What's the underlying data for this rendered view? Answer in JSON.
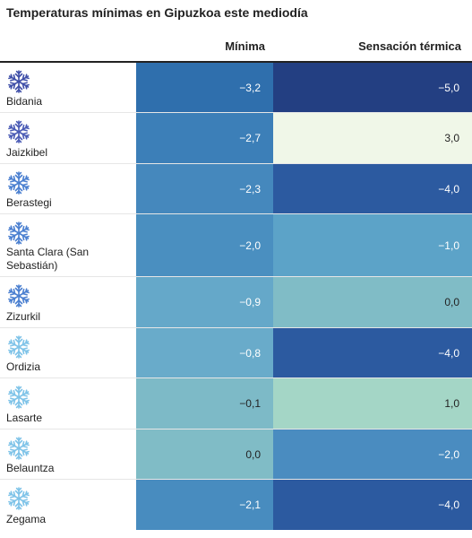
{
  "title": "Temperaturas mínimas en Gipuzkoa este mediodía",
  "headers": {
    "place": "",
    "min": "Mínima",
    "sens": "Sensación térmica"
  },
  "rows": [
    {
      "place": "Bidania",
      "min": "−3,2",
      "sens": "−5,0",
      "icon_color": "#3f4fa8",
      "min_bg": "#2f6fad",
      "min_fg": "#ffffff",
      "sens_bg": "#233f82",
      "sens_fg": "#ffffff"
    },
    {
      "place": "Jaizkibel",
      "min": "−2,7",
      "sens": "3,0",
      "icon_color": "#4a5bb5",
      "min_bg": "#3c7fb8",
      "min_fg": "#ffffff",
      "sens_bg": "#f0f7e8",
      "sens_fg": "#222222"
    },
    {
      "place": "Berastegi",
      "min": "−2,3",
      "sens": "−4,0",
      "icon_color": "#4a7fd0",
      "min_bg": "#4588bd",
      "min_fg": "#ffffff",
      "sens_bg": "#2c5aa0",
      "sens_fg": "#ffffff"
    },
    {
      "place": "Santa Clara (San Sebastián)",
      "min": "−2,0",
      "sens": "−1,0",
      "icon_color": "#4a7fd0",
      "min_bg": "#4a8fc0",
      "min_fg": "#ffffff",
      "sens_bg": "#5ca3c8",
      "sens_fg": "#ffffff"
    },
    {
      "place": "Zizurkil",
      "min": "−0,9",
      "sens": "0,0",
      "icon_color": "#4a7fd0",
      "min_bg": "#65a8c9",
      "min_fg": "#ffffff",
      "sens_bg": "#80bcc6",
      "sens_fg": "#222222"
    },
    {
      "place": "Ordizia",
      "min": "−0,8",
      "sens": "−4,0",
      "icon_color": "#7ec3e8",
      "min_bg": "#69abca",
      "min_fg": "#ffffff",
      "sens_bg": "#2c5aa0",
      "sens_fg": "#ffffff"
    },
    {
      "place": "Lasarte",
      "min": "−0,1",
      "sens": "1,0",
      "icon_color": "#7ec3e8",
      "min_bg": "#7dbac7",
      "min_fg": "#222222",
      "sens_bg": "#a4d6c6",
      "sens_fg": "#222222"
    },
    {
      "place": "Belauntza",
      "min": "0,0",
      "sens": "−2,0",
      "icon_color": "#7ec3e8",
      "min_bg": "#80bcc6",
      "min_fg": "#222222",
      "sens_bg": "#4a8cc0",
      "sens_fg": "#ffffff"
    },
    {
      "place": "Zegama",
      "min": "−2,1",
      "sens": "−4,0",
      "icon_color": "#7ec3e8",
      "min_bg": "#488cbf",
      "min_fg": "#ffffff",
      "sens_bg": "#2c5aa0",
      "sens_fg": "#ffffff"
    }
  ]
}
